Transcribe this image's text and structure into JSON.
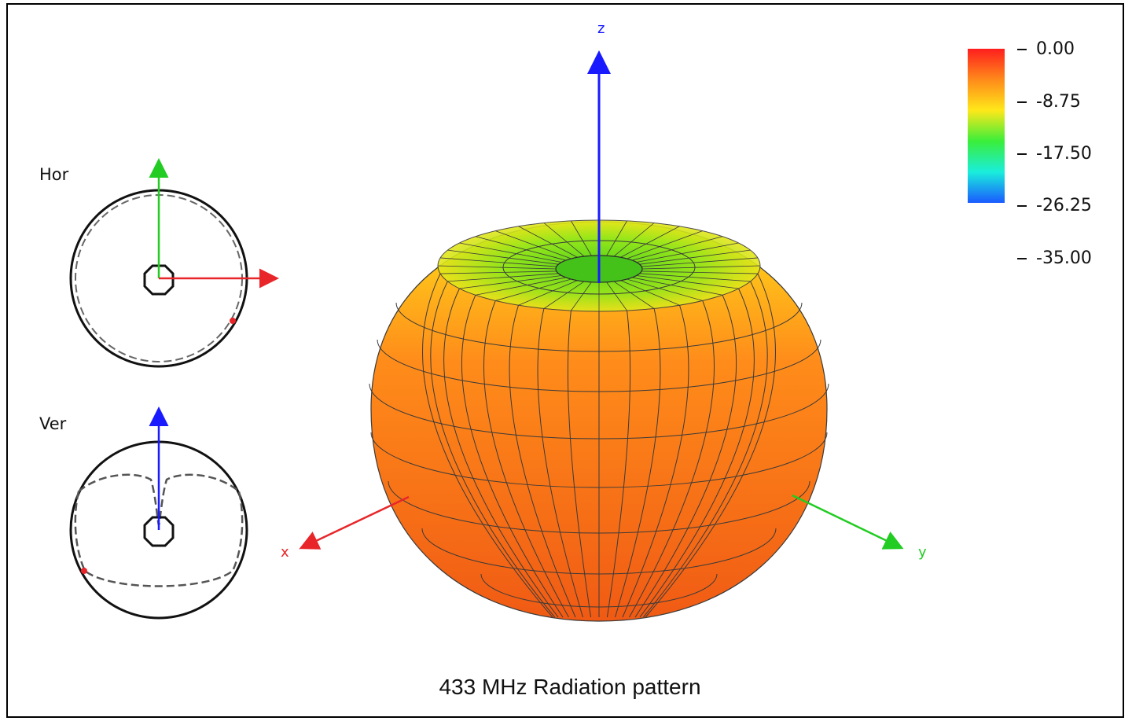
{
  "caption": "433 MHz Radiation pattern",
  "insets": {
    "horizontal_label": "Hor",
    "vertical_label": "Ver"
  },
  "axes": {
    "x_label": "x",
    "y_label": "y",
    "z_label": "z",
    "colors": {
      "x": "#e8262a",
      "y": "#22cc22",
      "z": "#1a1aff"
    }
  },
  "colorbar": {
    "ticks": [
      "0.00",
      "-8.75",
      "-17.50",
      "-26.25",
      "-35.00"
    ],
    "gradient": [
      "#ff1e1e",
      "#ff8a1a",
      "#ffe81a",
      "#3aee3a",
      "#1aeedc",
      "#1a5aff"
    ]
  },
  "pattern": {
    "body_color": "#f46a1a",
    "top_color": "#7ee61a",
    "mesh_color": "#3a3a3a"
  }
}
